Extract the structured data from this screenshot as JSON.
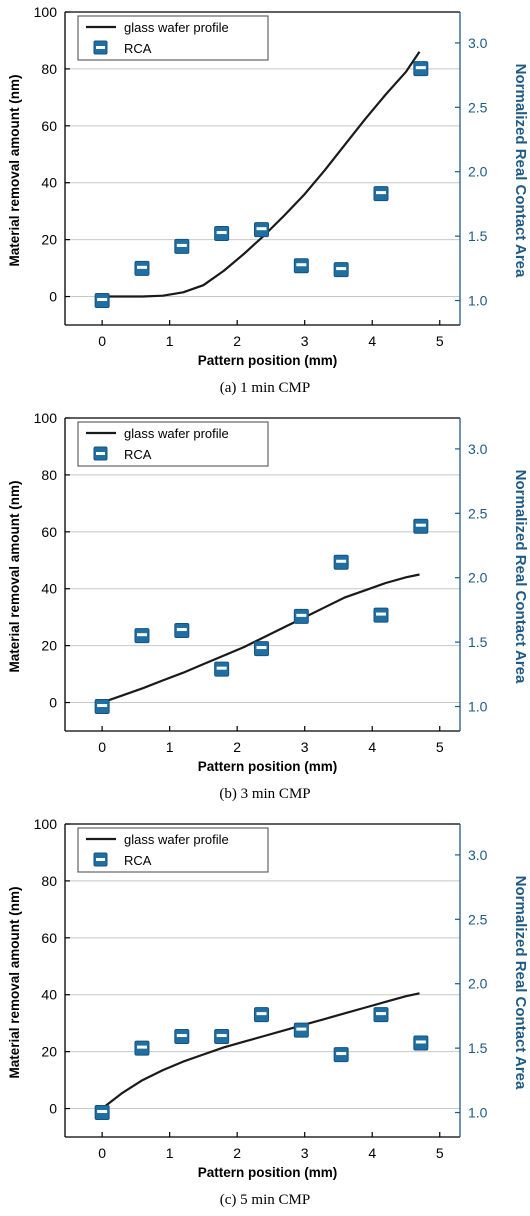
{
  "chart_data": [
    {
      "type": "line",
      "caption": "(a) 1 min CMP",
      "xlabel": "Pattern position (mm)",
      "ylabel": "Material removal amount (nm)",
      "y2label": "Normalized Real Contact Area",
      "xlim": [
        -0.55,
        5.3
      ],
      "ylim": [
        -10,
        100
      ],
      "y2lim": [
        0.81,
        3.24
      ],
      "xticks": [
        "0",
        "1",
        "2",
        "3",
        "4",
        "5"
      ],
      "yticks": [
        "0",
        "20",
        "40",
        "60",
        "80",
        "100"
      ],
      "y2ticks": [
        "1.0",
        "1.5",
        "2.0",
        "2.5",
        "3.0"
      ],
      "grid": "horizontal",
      "legend": "top-left",
      "series": [
        {
          "name": "glass wafer profile",
          "axis": "left",
          "style": "line",
          "x": [
            0,
            0.3,
            0.6,
            0.9,
            1.2,
            1.5,
            1.8,
            2.1,
            2.4,
            2.7,
            3.0,
            3.3,
            3.6,
            3.9,
            4.2,
            4.5,
            4.7
          ],
          "y": [
            0,
            0,
            0,
            0.3,
            1.5,
            4,
            9,
            15,
            21.5,
            28.5,
            36,
            44.5,
            53.5,
            62.5,
            71,
            79,
            86
          ]
        },
        {
          "name": "RCA",
          "axis": "right",
          "style": "marker",
          "x": [
            0,
            0.59,
            1.18,
            1.77,
            2.36,
            2.95,
            3.54,
            4.13,
            4.72
          ],
          "y": [
            1.0,
            1.25,
            1.42,
            1.52,
            1.55,
            1.27,
            1.24,
            1.83,
            2.8
          ]
        }
      ]
    },
    {
      "type": "line",
      "caption": "(b) 3 min CMP",
      "xlabel": "Pattern position (mm)",
      "ylabel": "Material removal amount (nm)",
      "y2label": "Normalized Real Contact Area",
      "xlim": [
        -0.55,
        5.3
      ],
      "ylim": [
        -10,
        100
      ],
      "y2lim": [
        0.81,
        3.24
      ],
      "xticks": [
        "0",
        "1",
        "2",
        "3",
        "4",
        "5"
      ],
      "yticks": [
        "0",
        "20",
        "40",
        "60",
        "80",
        "100"
      ],
      "y2ticks": [
        "1.0",
        "1.5",
        "2.0",
        "2.5",
        "3.0"
      ],
      "grid": "horizontal",
      "legend": "top-left",
      "series": [
        {
          "name": "glass wafer profile",
          "axis": "left",
          "style": "line",
          "x": [
            0,
            0.3,
            0.6,
            0.9,
            1.2,
            1.5,
            1.8,
            2.1,
            2.4,
            2.7,
            3.0,
            3.3,
            3.6,
            3.9,
            4.2,
            4.5,
            4.7
          ],
          "y": [
            0,
            2.5,
            5,
            7.8,
            10.5,
            13.5,
            16.5,
            19.5,
            23,
            26.5,
            30,
            33.5,
            37,
            39.5,
            42,
            44,
            45
          ]
        },
        {
          "name": "RCA",
          "axis": "right",
          "style": "marker",
          "x": [
            0,
            0.59,
            1.18,
            1.77,
            2.36,
            2.95,
            3.54,
            4.13,
            4.72
          ],
          "y": [
            1.0,
            1.55,
            1.59,
            1.29,
            1.45,
            1.7,
            2.12,
            1.71,
            2.4
          ]
        }
      ]
    },
    {
      "type": "line",
      "caption": "(c) 5 min CMP",
      "xlabel": "Pattern position (mm)",
      "ylabel": "Material removal amount (nm)",
      "y2label": "Normalized Real Contact Area",
      "xlim": [
        -0.55,
        5.3
      ],
      "ylim": [
        -10,
        100
      ],
      "y2lim": [
        0.81,
        3.24
      ],
      "xticks": [
        "0",
        "1",
        "2",
        "3",
        "4",
        "5"
      ],
      "yticks": [
        "0",
        "20",
        "40",
        "60",
        "80",
        "100"
      ],
      "y2ticks": [
        "1.0",
        "1.5",
        "2.0",
        "2.5",
        "3.0"
      ],
      "grid": "horizontal",
      "legend": "top-left",
      "series": [
        {
          "name": "glass wafer profile",
          "axis": "left",
          "style": "line",
          "x": [
            0,
            0.3,
            0.6,
            0.9,
            1.2,
            1.5,
            1.8,
            2.1,
            2.4,
            2.7,
            3.0,
            3.3,
            3.6,
            3.9,
            4.2,
            4.5,
            4.7
          ],
          "y": [
            0,
            5.5,
            10,
            13.5,
            16.5,
            19,
            21.5,
            23.5,
            25.5,
            27.5,
            29.5,
            31.5,
            33.5,
            35.5,
            37.5,
            39.5,
            40.5
          ]
        },
        {
          "name": "RCA",
          "axis": "right",
          "style": "marker",
          "x": [
            0,
            0.59,
            1.18,
            1.77,
            2.36,
            2.95,
            3.54,
            4.13,
            4.72
          ],
          "y": [
            1.0,
            1.5,
            1.59,
            1.59,
            1.76,
            1.64,
            1.45,
            1.76,
            1.54
          ]
        }
      ]
    }
  ],
  "colors": {
    "line": "#1a1a1a",
    "marker_fill": "#1f6fa3",
    "marker_band": "#ffffff",
    "right_axis": "#1f5a85",
    "grid": "#c8c8c8"
  }
}
